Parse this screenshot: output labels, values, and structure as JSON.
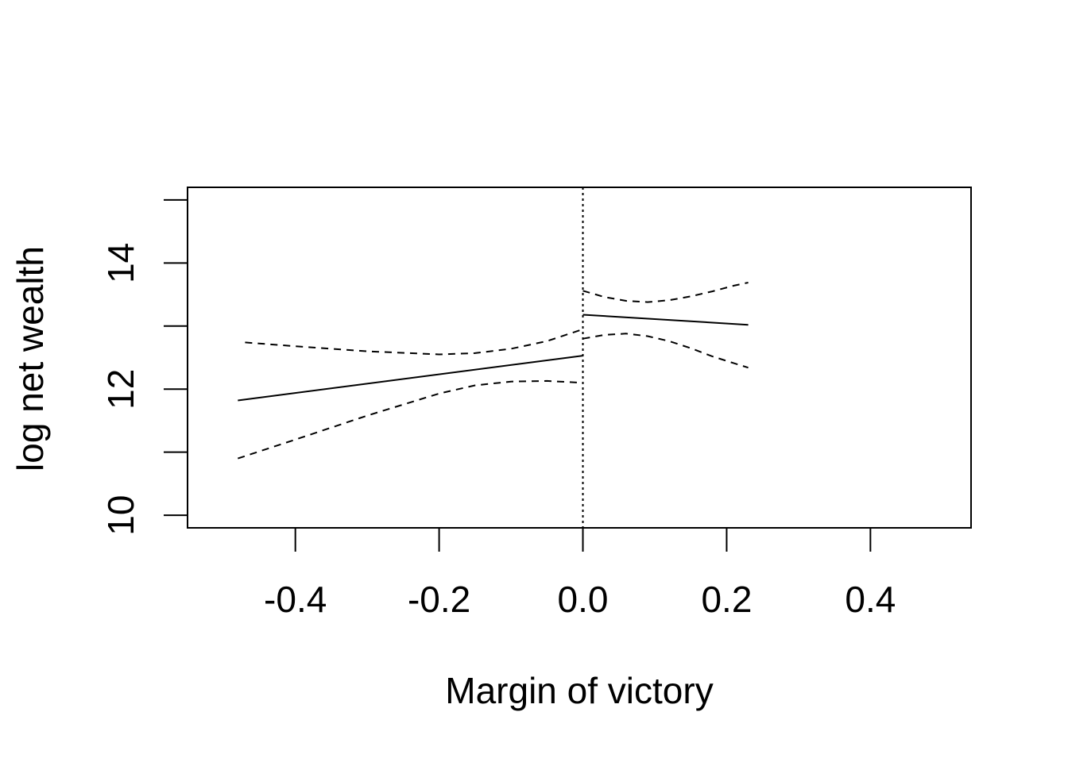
{
  "chart_data": {
    "type": "line",
    "title": "",
    "xlabel": "Margin of victory",
    "ylabel": "log net wealth",
    "xlim": [
      -0.55,
      0.54
    ],
    "ylim": [
      9.8,
      15.2
    ],
    "x_ticks": [
      -0.4,
      -0.2,
      0.0,
      0.2,
      0.4
    ],
    "x_tick_labels": [
      "-0.4",
      "-0.2",
      "0.0",
      "0.2",
      "0.4"
    ],
    "y_ticks": [
      10,
      11,
      12,
      13,
      14,
      15
    ],
    "y_tick_labels": [
      "10",
      "",
      "12",
      "",
      "14",
      ""
    ],
    "grid": false,
    "cutoff": {
      "x": 0.0,
      "style": "dotted"
    },
    "series": [
      {
        "role": "estimate-left",
        "style": "solid",
        "x": [
          -0.48,
          0.0
        ],
        "y": [
          11.82,
          12.53
        ]
      },
      {
        "role": "upper-ci-left",
        "style": "dashed",
        "x": [
          -0.47,
          -0.4,
          -0.3,
          -0.2,
          -0.15,
          -0.1,
          -0.05,
          0.0
        ],
        "y": [
          12.74,
          12.68,
          12.6,
          12.55,
          12.57,
          12.64,
          12.76,
          12.95
        ]
      },
      {
        "role": "lower-ci-left",
        "style": "dashed",
        "x": [
          -0.48,
          -0.4,
          -0.3,
          -0.2,
          -0.15,
          -0.1,
          -0.05,
          0.0
        ],
        "y": [
          10.9,
          11.2,
          11.58,
          11.93,
          12.06,
          12.12,
          12.13,
          12.1
        ]
      },
      {
        "role": "estimate-right",
        "style": "solid",
        "x": [
          0.0,
          0.23
        ],
        "y": [
          13.18,
          13.02
        ]
      },
      {
        "role": "upper-ci-right",
        "style": "dashed",
        "x": [
          0.0,
          0.03,
          0.06,
          0.09,
          0.12,
          0.15,
          0.18,
          0.21,
          0.23
        ],
        "y": [
          13.56,
          13.46,
          13.4,
          13.38,
          13.41,
          13.47,
          13.55,
          13.64,
          13.69
        ]
      },
      {
        "role": "lower-ci-right",
        "style": "dashed",
        "x": [
          0.0,
          0.03,
          0.06,
          0.09,
          0.12,
          0.15,
          0.18,
          0.21,
          0.23
        ],
        "y": [
          12.8,
          12.86,
          12.88,
          12.84,
          12.76,
          12.65,
          12.52,
          12.41,
          12.34
        ]
      }
    ]
  }
}
